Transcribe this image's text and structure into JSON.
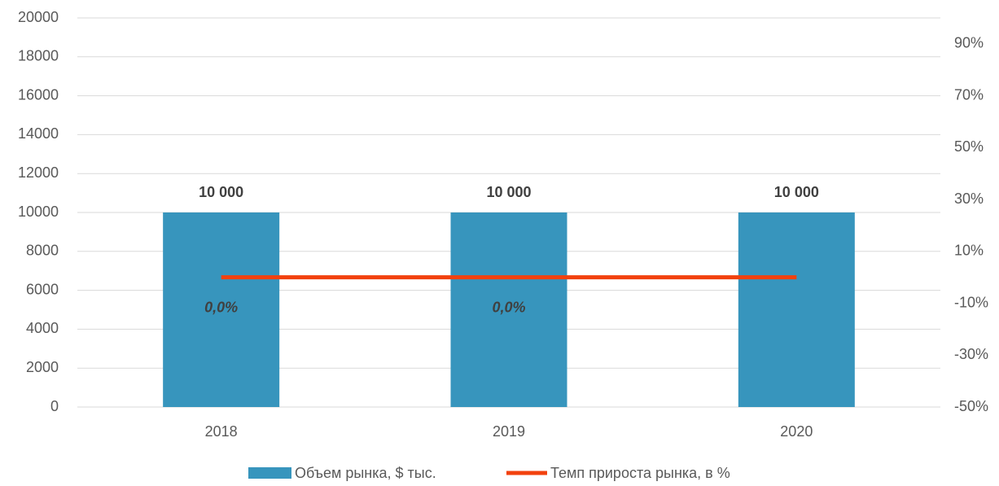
{
  "chart_data": {
    "type": "bar-line",
    "categories": [
      "2018",
      "2019",
      "2020"
    ],
    "series": [
      {
        "name": "Объем рынка, $ тыс.",
        "type": "bar",
        "color": "#3795bd",
        "values": [
          10000,
          10000,
          10000
        ],
        "value_labels": [
          "10 000",
          "10 000",
          "10 000"
        ]
      },
      {
        "name": "Темп прироста рынка, в %",
        "type": "line",
        "axis": "y2",
        "color": "#f2410e",
        "values": [
          0,
          0,
          0
        ],
        "value_labels": [
          "0,0%",
          "0,0%",
          null
        ]
      }
    ],
    "ylim": [
      0,
      20000
    ],
    "yticks": [
      0,
      2000,
      4000,
      6000,
      8000,
      10000,
      12000,
      14000,
      16000,
      18000,
      20000
    ],
    "y2lim": [
      -50,
      100
    ],
    "y2ticks": [
      {
        "value": -50,
        "label": "-50%"
      },
      {
        "value": -30,
        "label": "-30%"
      },
      {
        "value": -10,
        "label": "-10%"
      },
      {
        "value": 10,
        "label": "10%"
      },
      {
        "value": 30,
        "label": "30%"
      },
      {
        "value": 50,
        "label": "50%"
      },
      {
        "value": 70,
        "label": "70%"
      },
      {
        "value": 90,
        "label": "90%"
      }
    ],
    "grid": true,
    "legend": "bottom"
  }
}
